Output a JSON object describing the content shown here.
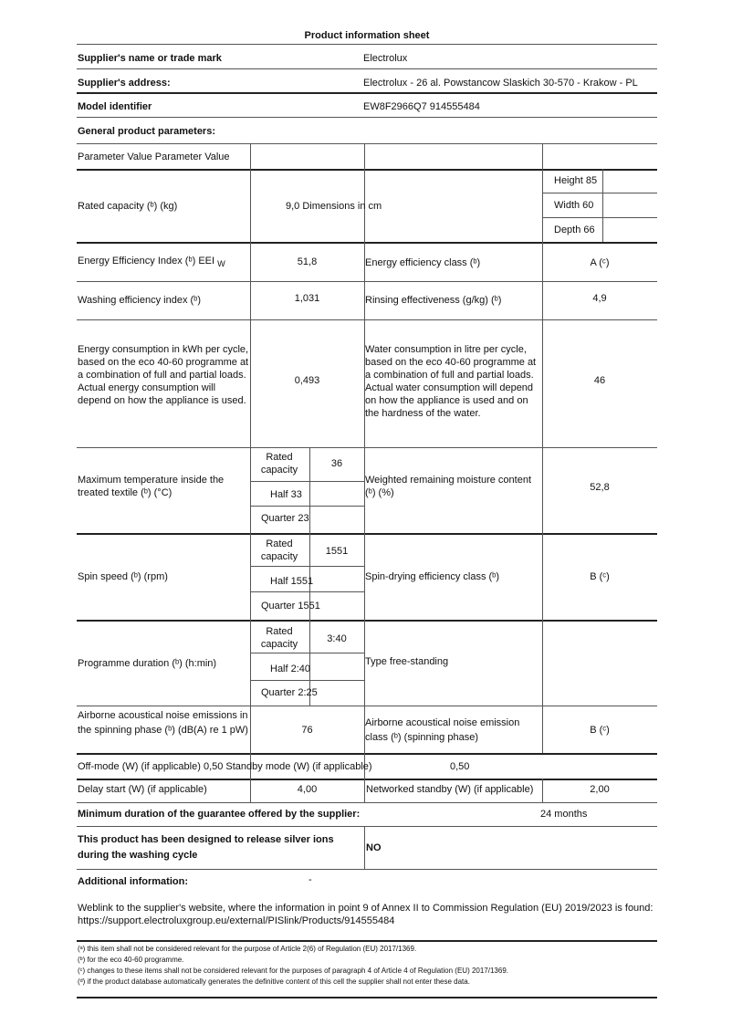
{
  "title": "Product information sheet",
  "header": [
    {
      "label": "Supplier's name or trade mark",
      "value": "Electrolux"
    },
    {
      "label": "Supplier's address:",
      "value": "Electrolux - 26 al. Powstancow Slaskich 30-570 - Krakow - PL"
    },
    {
      "label": "Model identifier",
      "value": "EW8F2966Q7 914555484"
    }
  ],
  "general_heading": "General product parameters:",
  "param_header": "Parameter Value Parameter Value",
  "rated_capacity": {
    "label": "Rated capacity (ᵇ) (kg)",
    "value": "9,0 Dimensions in cm",
    "height": "Height 85",
    "width": "Width 60",
    "depth": "Depth 66"
  },
  "eei": {
    "label": "Energy Efficiency Index (ᵇ) EEI",
    "sub": "W",
    "value": "51,8",
    "label2": "Energy efficiency class (ᵇ)",
    "value2": "A (ᶜ)"
  },
  "wash": {
    "label": "Washing efficiency index (ᵇ)",
    "value": "1,031",
    "label2": "Rinsing effectiveness (g/kg) (ᵇ)",
    "value2": "4,9"
  },
  "energy": {
    "label": "Energy consumption in kWh per cycle, based on the eco 40-60 programme at a combination of full and partial loads. Actual energy consumption will depend on how the appliance is used.",
    "value": "0,493",
    "label2": "Water consumption in litre per cycle, based on the eco 40-60 programme at a combination of full and partial loads. Actual water consumption will depend on how the appliance is used and on the hardness of the water.",
    "value2": "46"
  },
  "temp": {
    "label": "Maximum temperature inside the treated textile (ᵇ) (°C)",
    "rated": "Rated capacity",
    "rated_value": "36",
    "half": "Half 33",
    "quarter": "Quarter 23",
    "label2": "Weighted remaining moisture content (ᵇ) (%)",
    "value2": "52,8"
  },
  "spin": {
    "label": "Spin speed (ᵇ) (rpm)",
    "rated": "Rated capacity",
    "rated_value": "1551",
    "half": "Half 1551",
    "quarter": "Quarter 1551",
    "label2": "Spin-drying efficiency class (ᵇ)",
    "value2": "B (ᶜ)"
  },
  "duration": {
    "label": "Programme duration (ᵇ) (h:min)",
    "rated": "Rated capacity",
    "rated_value": "3:40",
    "half": "Half 2:40",
    "quarter": "Quarter 2:25",
    "label2": "Type free-standing"
  },
  "noise": {
    "label": "Airborne acoustical noise emissions in the spinning phase (ᵇ) (dB(A) re 1 pW)",
    "value": "76",
    "label2": "Airborne acoustical noise emission class (ᵇ) (spinning phase)",
    "value2": "B (ᶜ)"
  },
  "offmode": {
    "label": "Off-mode (W) (if applicable) 0,50 Standby mode (W) (if applicable)",
    "value": "0,50"
  },
  "delay": {
    "label": "Delay start (W) (if applicable)",
    "value": "4,00",
    "label2": "Networked standby (W) (if applicable)",
    "value2": "2,00"
  },
  "guarantee": {
    "label": "Minimum duration of the guarantee offered by the supplier:",
    "value": "24 months"
  },
  "silver": {
    "label": "This product has been designed to release silver ions during the washing cycle",
    "value": "NO"
  },
  "additional": {
    "label": "Additional information:",
    "value": "-"
  },
  "weblink": "Weblink to the supplier's website, where the information in point 9 of Annex II to Commission Regulation (EU) 2019/2023 is found: https://support.electroluxgroup.eu/external/PISlink/Products/914555484",
  "footnotes": [
    "(ᵃ) this item shall not be considered relevant for the purpose of Article 2(6) of Regulation (EU) 2017/1369.",
    "(ᵇ) for the eco 40-60 programme.",
    "(ᶜ) changes to these items shall not be considered relevant for the purposes of paragraph 4 of Article 4 of Regulation (EU) 2017/1369.",
    "(ᵈ) if the product database automatically generates the definitive content of this cell the supplier shall not enter these data."
  ]
}
